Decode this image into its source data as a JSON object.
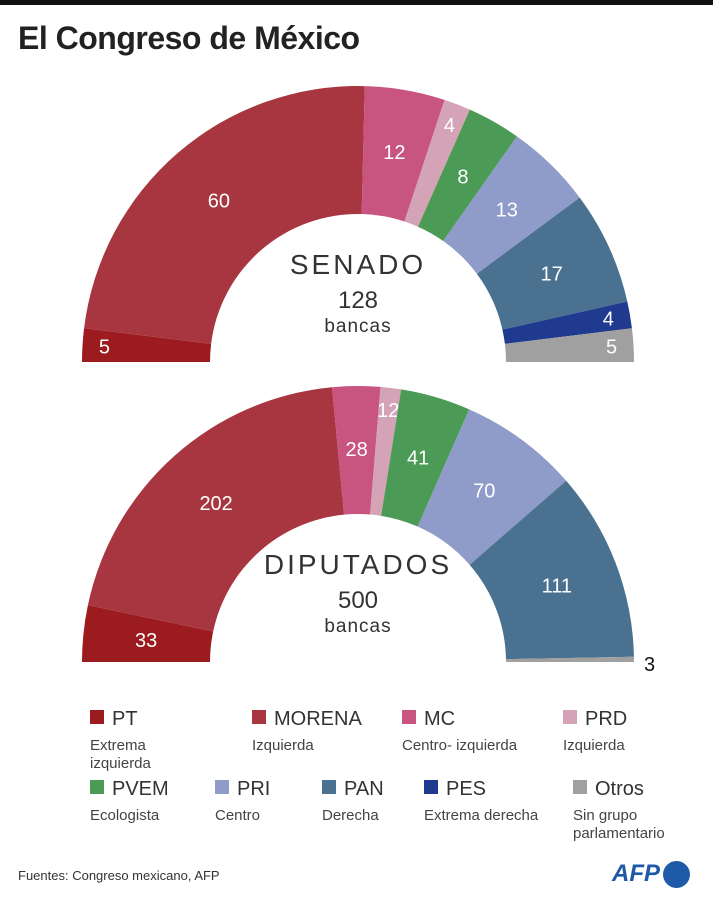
{
  "title": "El Congreso de México",
  "chart_data": [
    {
      "type": "parliament-semicircle",
      "title": "SENADO",
      "total": "128",
      "total_unit": "bancas",
      "parties": [
        "PT",
        "MORENA",
        "MC",
        "PRD",
        "PVEM",
        "PRI",
        "PAN",
        "PES",
        "Otros"
      ],
      "values": [
        5,
        60,
        12,
        4,
        8,
        13,
        17,
        4,
        5
      ]
    },
    {
      "type": "parliament-semicircle",
      "title": "DIPUTADOS",
      "total": "500",
      "total_unit": "bancas",
      "parties": [
        "PT",
        "MORENA",
        "MC",
        "PRD",
        "PVEM",
        "PRI",
        "PAN",
        "PES",
        "Otros"
      ],
      "values": [
        33,
        202,
        28,
        12,
        41,
        70,
        111,
        0,
        3
      ]
    }
  ],
  "legend": [
    {
      "name": "PT",
      "desc": "Extrema izquierda",
      "color": "#9b1b1e"
    },
    {
      "name": "MORENA",
      "desc": "Izquierda",
      "color": "#a83640"
    },
    {
      "name": "MC",
      "desc": "Centro- izquierda",
      "color": "#c85480"
    },
    {
      "name": "PRD",
      "desc": "Izquierda",
      "color": "#d4a3b5"
    },
    {
      "name": "PVEM",
      "desc": "Ecologista",
      "color": "#4b9a55"
    },
    {
      "name": "PRI",
      "desc": "Centro",
      "color": "#8f9bc8"
    },
    {
      "name": "PAN",
      "desc": "Derecha",
      "color": "#4a718f"
    },
    {
      "name": "PES",
      "desc": "Extrema derecha",
      "color": "#1f3a8f"
    },
    {
      "name": "Otros",
      "desc": "Sin grupo parlamentario",
      "color": "#a0a0a0"
    }
  ],
  "source": "Fuentes: Congreso mexicano, AFP",
  "logo": "AFP"
}
